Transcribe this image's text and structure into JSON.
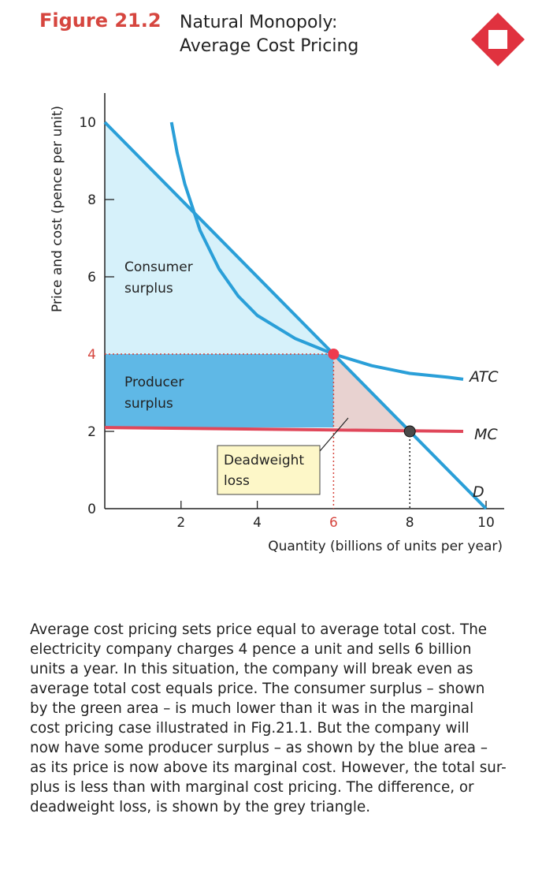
{
  "figure": {
    "label": "Figure 21.2",
    "title_line1": "Natural Monopoly:",
    "title_line2": "Average Cost Pricing",
    "logo_icon": "red-diamond-icon"
  },
  "chart_data": {
    "type": "line",
    "xlabel": "Quantity (billions of units per year)",
    "ylabel": "Price and cost (pence per unit)",
    "xlim": [
      0,
      10
    ],
    "ylim": [
      0,
      10
    ],
    "x_ticks": [
      "2",
      "4",
      "6",
      "8",
      "10"
    ],
    "y_ticks": [
      "0",
      "2",
      "4",
      "6",
      "8",
      "10"
    ],
    "series": [
      {
        "name": "D",
        "points": [
          [
            0,
            10
          ],
          [
            10,
            0
          ]
        ],
        "color": "#2a9fd8"
      },
      {
        "name": "ATC",
        "points": [
          [
            1.75,
            10
          ],
          [
            1.9,
            9.2
          ],
          [
            2.1,
            8.4
          ],
          [
            2.5,
            7.2
          ],
          [
            3,
            6.2
          ],
          [
            3.5,
            5.5
          ],
          [
            4,
            5
          ],
          [
            5,
            4.4
          ],
          [
            6,
            4
          ],
          [
            7,
            3.7
          ],
          [
            8,
            3.5
          ],
          [
            9,
            3.4
          ],
          [
            9.4,
            3.35
          ]
        ],
        "color": "#2a9fd8"
      },
      {
        "name": "MC",
        "points": [
          [
            0,
            2.1
          ],
          [
            9.4,
            2
          ]
        ],
        "color": "#e0475a"
      }
    ],
    "points": [
      {
        "x": 6,
        "y": 4,
        "color": "#ee3b4e"
      },
      {
        "x": 8,
        "y": 2,
        "color": "#4a4a4a"
      }
    ],
    "areas": [
      {
        "label_line1": "Consumer",
        "label_line2": "surplus",
        "color": "#d6f1fa"
      },
      {
        "label_line1": "Producer",
        "label_line2": "surplus",
        "color": "#5fb8e6"
      },
      {
        "label_line1": "Deadweight",
        "label_line2": "loss",
        "color": "#e8d2d0"
      }
    ],
    "colors": {
      "price_tick": "#d6463f",
      "q_tick": "#d6463f",
      "label_box": "#fdf7c8"
    }
  },
  "caption": {
    "lines": [
      "Average cost pricing sets price equal to average total cost. The",
      "electricity company charges 4 pence a unit and sells 6 billion",
      "units a year.  In this situation, the company will break even as",
      "average total cost equals price.  The consumer surplus – shown",
      "by the green area – is much lower than it was in the marginal",
      "cost pricing case illustrated in Fig.21.1.  But the company will",
      "now have some producer surplus – as shown by the blue area –",
      "as its price is now above its marginal cost.  However, the total sur-",
      "plus is less than with marginal cost pricing.  The difference, or",
      "deadweight loss, is shown by the grey triangle."
    ]
  }
}
